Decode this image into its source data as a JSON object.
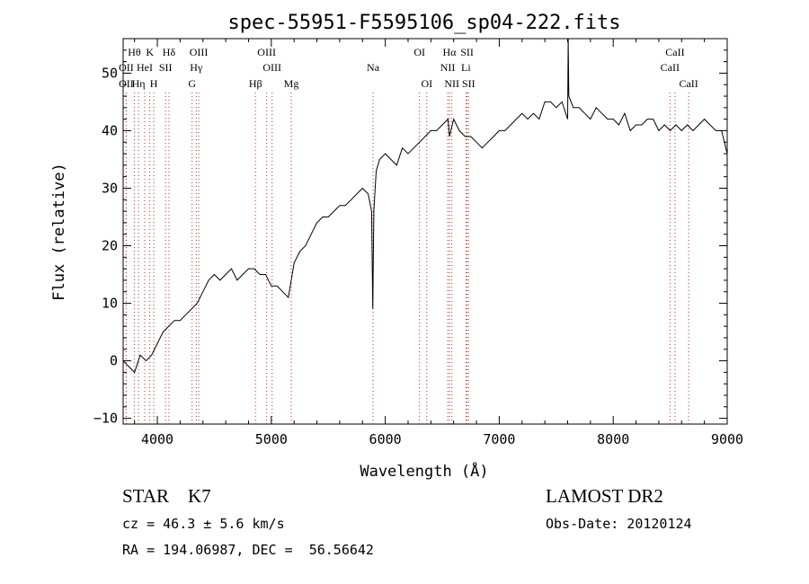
{
  "chart_data": {
    "type": "line",
    "title": "spec-55951-F5595106_sp04-222.fits",
    "xlabel": "Wavelength (Å)",
    "ylabel": "Flux (relative)",
    "xlim": [
      3700,
      9000
    ],
    "ylim": [
      -11,
      56
    ],
    "xticks": [
      4000,
      5000,
      6000,
      7000,
      8000,
      9000
    ],
    "yticks": [
      -10,
      0,
      10,
      20,
      30,
      40,
      50
    ],
    "grid": false,
    "series": [
      {
        "x": [
          3700,
          3750,
          3800,
          3850,
          3900,
          3950,
          4000,
          4050,
          4100,
          4150,
          4200,
          4250,
          4300,
          4350,
          4400,
          4450,
          4500,
          4550,
          4600,
          4650,
          4700,
          4750,
          4800,
          4850,
          4900,
          4950,
          5000,
          5050,
          5100,
          5150,
          5200,
          5250,
          5300,
          5350,
          5400,
          5450,
          5500,
          5550,
          5600,
          5650,
          5700,
          5750,
          5800,
          5850,
          5880,
          5890,
          5900,
          5920,
          5950,
          6000,
          6050,
          6100,
          6150,
          6200,
          6250,
          6300,
          6350,
          6400,
          6450,
          6500,
          6550,
          6563,
          6600,
          6650,
          6700,
          6750,
          6800,
          6850,
          6900,
          6950,
          7000,
          7050,
          7100,
          7150,
          7200,
          7250,
          7300,
          7350,
          7400,
          7450,
          7500,
          7550,
          7600,
          7605,
          7610,
          7650,
          7700,
          7750,
          7800,
          7850,
          7900,
          7950,
          8000,
          8050,
          8100,
          8150,
          8200,
          8250,
          8300,
          8350,
          8400,
          8450,
          8500,
          8550,
          8600,
          8650,
          8700,
          8750,
          8800,
          8850,
          8900,
          8950,
          9000
        ],
        "y": [
          0,
          -1,
          -2,
          1,
          0,
          1,
          3,
          5,
          6,
          7,
          7,
          8,
          9,
          10,
          12,
          14,
          15,
          14,
          15,
          16,
          14,
          15,
          16,
          16,
          15,
          15,
          13,
          13,
          12,
          11,
          17,
          19,
          20,
          22,
          24,
          25,
          25,
          26,
          27,
          27,
          28,
          29,
          30,
          29,
          26,
          9,
          26,
          33,
          35,
          36,
          35,
          34,
          37,
          36,
          37,
          38,
          39,
          40,
          40,
          41,
          42,
          39,
          42,
          40,
          39,
          39,
          38,
          37,
          38,
          39,
          40,
          40,
          41,
          42,
          43,
          42,
          43,
          42,
          45,
          45,
          44,
          45,
          42,
          56,
          46,
          44,
          44,
          43,
          42,
          44,
          43,
          42,
          42,
          41,
          43,
          40,
          41,
          41,
          42,
          42,
          40,
          41,
          40,
          41,
          40,
          41,
          40,
          41,
          42,
          41,
          40,
          40,
          36
        ]
      }
    ],
    "lines": [
      {
        "label": "Hθ",
        "x": 3798,
        "row": 0
      },
      {
        "label": "K",
        "x": 3934,
        "row": 0
      },
      {
        "label": "Hδ",
        "x": 4102,
        "row": 0
      },
      {
        "label": "OIII",
        "x": 4363,
        "row": 0
      },
      {
        "label": "OIII",
        "x": 4959,
        "row": 0
      },
      {
        "label": "OI",
        "x": 6300,
        "row": 0
      },
      {
        "label": "Hα",
        "x": 6563,
        "row": 0
      },
      {
        "label": "SII",
        "x": 6717,
        "row": 0
      },
      {
        "label": "CaII",
        "x": 8542,
        "row": 0
      },
      {
        "label": "OII",
        "x": 3727,
        "row": 1
      },
      {
        "label": "HeI",
        "x": 3889,
        "row": 1
      },
      {
        "label": "SII",
        "x": 4072,
        "row": 1
      },
      {
        "label": "Hγ",
        "x": 4341,
        "row": 1
      },
      {
        "label": "OIII",
        "x": 5007,
        "row": 1
      },
      {
        "label": "Na",
        "x": 5893,
        "row": 1
      },
      {
        "label": "NII",
        "x": 6548,
        "row": 1
      },
      {
        "label": "Li",
        "x": 6708,
        "row": 1
      },
      {
        "label": "CaII",
        "x": 8498,
        "row": 1
      },
      {
        "label": "OII",
        "x": 3727,
        "row": 2
      },
      {
        "label": "Hη",
        "x": 3835,
        "row": 2
      },
      {
        "label": "H",
        "x": 3969,
        "row": 2
      },
      {
        "label": "G",
        "x": 4305,
        "row": 2
      },
      {
        "label": "Hβ",
        "x": 4861,
        "row": 2
      },
      {
        "label": "Mg",
        "x": 5175,
        "row": 2
      },
      {
        "label": "OI",
        "x": 6364,
        "row": 2
      },
      {
        "label": "NII",
        "x": 6584,
        "row": 2
      },
      {
        "label": "SII",
        "x": 6731,
        "row": 2
      },
      {
        "label": "CaII",
        "x": 8662,
        "row": 2
      }
    ]
  },
  "info": {
    "star_class": "STAR    K7",
    "survey": "LAMOST DR2",
    "cz": "cz = 46.3 ± 5.6 km/s",
    "obs_date": "Obs-Date: 20120124",
    "radec": "RA = 194.06987, DEC =  56.56642"
  }
}
